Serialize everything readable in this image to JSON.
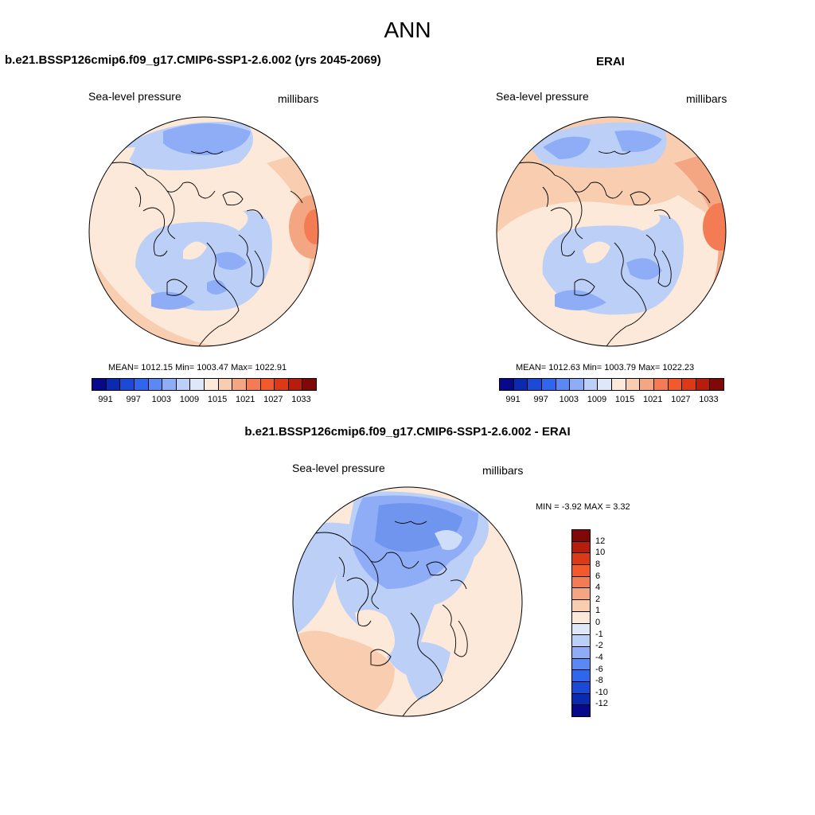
{
  "title": "ANN",
  "panels": {
    "model": {
      "title": "b.e21.BSSP126cmip6.f09_g17.CMIP6-SSP1-2.6.002 (yrs 2045-2069)",
      "variable": "Sea-level pressure",
      "units": "millibars",
      "stats": "MEAN= 1012.15  Min= 1003.47  Max= 1022.91"
    },
    "obs": {
      "title": "ERAI",
      "variable": "Sea-level pressure",
      "units": "millibars",
      "stats": "MEAN= 1012.63  Min= 1003.79  Max= 1022.23"
    },
    "diff": {
      "title": "b.e21.BSSP126cmip6.f09_g17.CMIP6-SSP1-2.6.002 - ERAI",
      "variable": "Sea-level pressure",
      "units": "millibars",
      "stats": "MIN =  -3.92 MAX =   3.32"
    }
  },
  "colorbar_main": {
    "colors": [
      "#08088a",
      "#0a2ab0",
      "#1a4ad6",
      "#2f66ee",
      "#5a88f5",
      "#8fadf6",
      "#bcd0f7",
      "#dfe8f8",
      "#fde9d9",
      "#f8cdb0",
      "#f4a582",
      "#f47c55",
      "#f05a2c",
      "#dc3a16",
      "#b71c0c",
      "#7f0808"
    ],
    "ticks": [
      "991",
      "997",
      "1003",
      "1009",
      "1015",
      "1021",
      "1027",
      "1033"
    ]
  },
  "colorbar_diff": {
    "colors": [
      "#7f0808",
      "#b71c0c",
      "#dc3a16",
      "#f05a2c",
      "#f47c55",
      "#f4a582",
      "#f8cdb0",
      "#fde9d9",
      "#dfe8f8",
      "#bcd0f7",
      "#8fadf6",
      "#5a88f5",
      "#2f66ee",
      "#1a4ad6",
      "#0a2ab0",
      "#08088a"
    ],
    "ticks": [
      "12",
      "10",
      "8",
      "6",
      "4",
      "2",
      "1",
      "0",
      "-1",
      "-2",
      "-4",
      "-6",
      "-8",
      "-10",
      "-12"
    ]
  },
  "map_colors": {
    "deep_blue": "#6f95ee",
    "mid_blue": "#9fbcf5",
    "light_blue": "#cfddf8",
    "neutral": "#fde9d9",
    "light_red": "#f8cdb0",
    "mid_red": "#f4a582",
    "strong_red": "#f47c55"
  }
}
